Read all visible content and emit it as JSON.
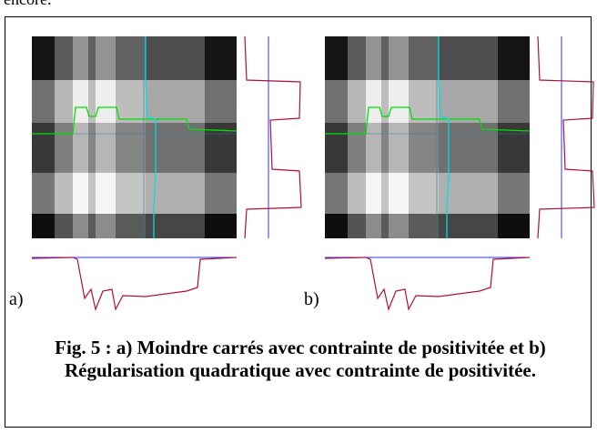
{
  "top_text": "encore.",
  "panels": [
    {
      "label": "a)"
    },
    {
      "label": "b)"
    }
  ],
  "caption": "Fig. 5 : a) Moindre carrés avec contrainte de positivitée et b) Régularisation quadratique avec contrainte de positivitée."
}
